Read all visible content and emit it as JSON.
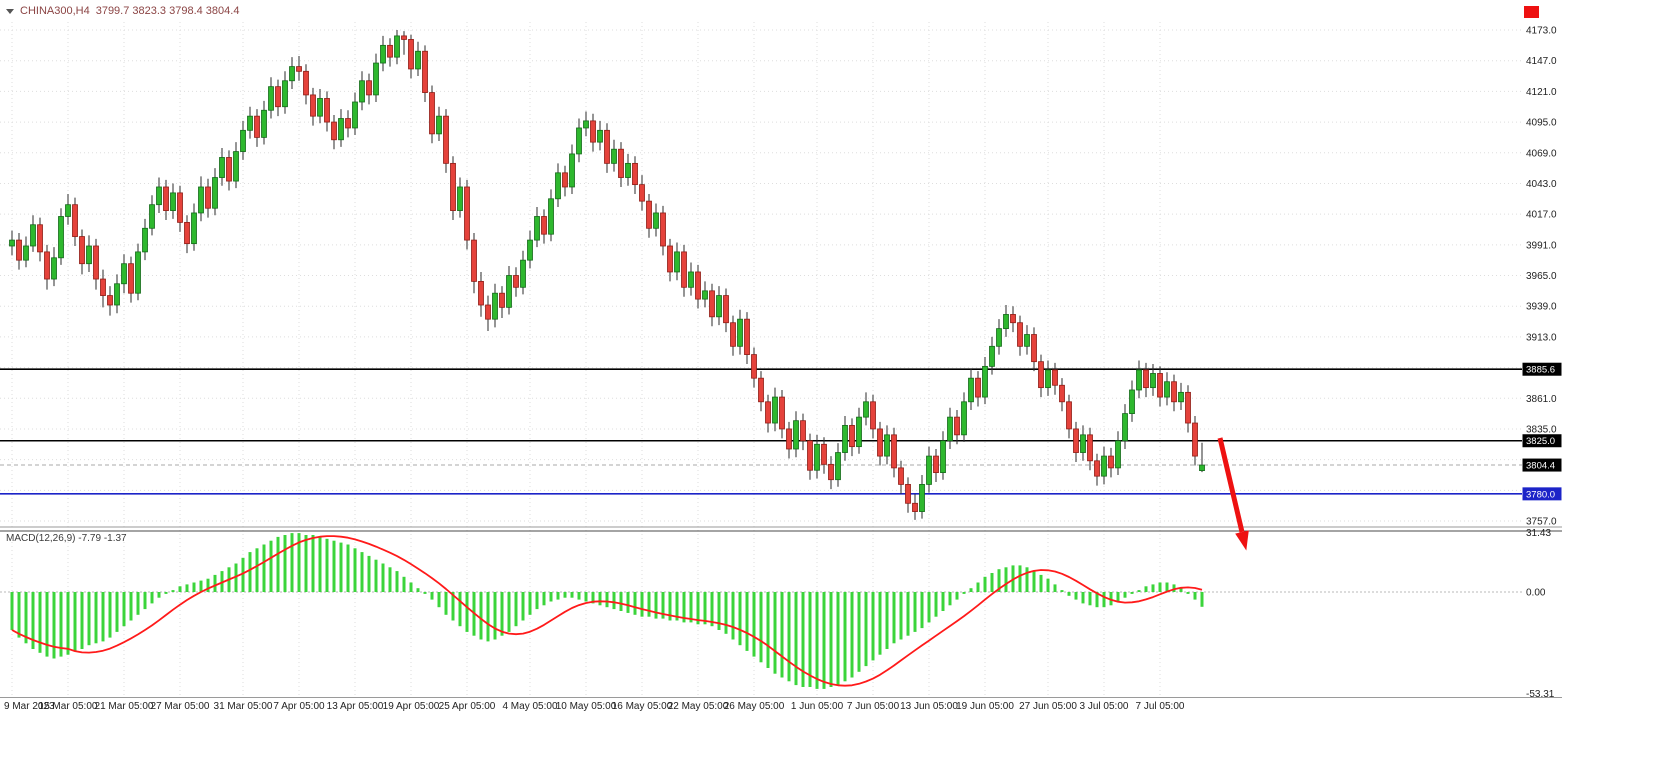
{
  "toolbar": {
    "symbol": "CHINA300,H4",
    "ohlc": "3799.7 3823.3 3798.4 3804.4"
  },
  "macd_label": "MACD(12,26,9) -7.79 -1.37",
  "colors": {
    "bull": "#2eb82e",
    "bear": "#e5423b",
    "wick": "#2b2b2b",
    "macd_bar": "#3bd43b",
    "macd_signal": "#ff1a1a",
    "level_black": "#000000",
    "level_blue": "#1c24c8",
    "grid": "#dedede",
    "axis_text": "#222222",
    "badge_text": "#ffffff",
    "arrow": "#ee1111"
  },
  "price_axis": {
    "visible_ticks": [
      4173,
      4147,
      4121,
      4095,
      4069,
      4043,
      4017,
      3991,
      3965,
      3939,
      3913,
      3861,
      3835,
      3757
    ]
  },
  "badges": [
    {
      "label": "3885.6",
      "price": 3885.6,
      "bg": "#000000"
    },
    {
      "label": "3825.0",
      "price": 3825.0,
      "bg": "#000000"
    },
    {
      "label": "3804.4",
      "price": 3804.4,
      "bg": "#000000"
    },
    {
      "label": "3780.0",
      "price": 3780.0,
      "bg": "#1c24c8"
    }
  ],
  "macd_axis": {
    "ticks": [
      {
        "label": "31.43",
        "value": 31.43
      },
      {
        "label": "0.00",
        "value": 0
      },
      {
        "label": "-53.31",
        "value": -53.31
      }
    ]
  },
  "time_axis": {
    "labels": [
      "9 Mar 2023",
      "15 Mar 05:00",
      "21 Mar 05:00",
      "27 Mar 05:00",
      "31 Mar 05:00",
      "7 Apr 05:00",
      "13 Apr 05:00",
      "19 Apr 05:00",
      "25 Apr 05:00",
      "4 May 05:00",
      "10 May 05:00",
      "16 May 05:00",
      "22 May 05:00",
      "26 May 05:00",
      "1 Jun 05:00",
      "7 Jun 05:00",
      "13 Jun 05:00",
      "19 Jun 05:00",
      "27 Jun 05:00",
      "3 Jul 05:00",
      "7 Jul 05:00"
    ],
    "indices": [
      0,
      8,
      16,
      24,
      33,
      41,
      49,
      57,
      65,
      74,
      82,
      90,
      98,
      106,
      115,
      123,
      131,
      139,
      148,
      156,
      164
    ]
  },
  "annotation": {
    "type": "arrow",
    "color": "#ee1111",
    "from": [
      1220,
      438
    ],
    "to": [
      1242,
      532
    ]
  },
  "chart_data": {
    "type": "candlestick",
    "symbol": "CHINA300",
    "timeframe": "H4",
    "title": "CHINA300,H4",
    "current_ohlc": {
      "open": 3799.7,
      "high": 3823.3,
      "low": 3798.4,
      "close": 3804.4
    },
    "price_range": [
      3757,
      4173
    ],
    "grid_step": 26,
    "levels": [
      {
        "price": 3885.6,
        "color": "#000000",
        "style": "solid"
      },
      {
        "price": 3825.0,
        "color": "#000000",
        "style": "solid"
      },
      {
        "price": 3804.4,
        "color": "#aaaaaa",
        "style": "dash"
      },
      {
        "price": 3780.0,
        "color": "#1c24c8",
        "style": "solid"
      }
    ],
    "candles": [
      [
        3990,
        4003,
        3982,
        3995
      ],
      [
        3995,
        4001,
        3970,
        3978
      ],
      [
        3978,
        3998,
        3972,
        3990
      ],
      [
        3990,
        4016,
        3985,
        4008
      ],
      [
        4008,
        4014,
        3977,
        3985
      ],
      [
        3985,
        3991,
        3953,
        3962
      ],
      [
        3962,
        3989,
        3956,
        3980
      ],
      [
        3980,
        4022,
        3974,
        4015
      ],
      [
        4015,
        4034,
        4008,
        4025
      ],
      [
        4025,
        4031,
        3990,
        3998
      ],
      [
        3998,
        4004,
        3966,
        3975
      ],
      [
        3975,
        3999,
        3968,
        3990
      ],
      [
        3990,
        3996,
        3953,
        3962
      ],
      [
        3962,
        3970,
        3938,
        3948
      ],
      [
        3948,
        3956,
        3931,
        3940
      ],
      [
        3940,
        3966,
        3933,
        3958
      ],
      [
        3958,
        3983,
        3950,
        3975
      ],
      [
        3975,
        3981,
        3942,
        3950
      ],
      [
        3950,
        3992,
        3944,
        3985
      ],
      [
        3985,
        4013,
        3978,
        4005
      ],
      [
        4005,
        4033,
        3999,
        4025
      ],
      [
        4025,
        4048,
        4018,
        4040
      ],
      [
        4040,
        4046,
        4012,
        4020
      ],
      [
        4020,
        4043,
        4013,
        4035
      ],
      [
        4035,
        4041,
        4002,
        4010
      ],
      [
        4010,
        4016,
        3984,
        3992
      ],
      [
        3992,
        4026,
        3986,
        4018
      ],
      [
        4018,
        4049,
        4011,
        4040
      ],
      [
        4040,
        4047,
        4014,
        4022
      ],
      [
        4022,
        4056,
        4016,
        4048
      ],
      [
        4048,
        4073,
        4041,
        4065
      ],
      [
        4065,
        4071,
        4037,
        4045
      ],
      [
        4045,
        4078,
        4039,
        4070
      ],
      [
        4070,
        4096,
        4063,
        4088
      ],
      [
        4088,
        4108,
        4081,
        4100
      ],
      [
        4100,
        4106,
        4074,
        4082
      ],
      [
        4082,
        4113,
        4076,
        4105
      ],
      [
        4105,
        4133,
        4098,
        4125
      ],
      [
        4125,
        4131,
        4100,
        4108
      ],
      [
        4108,
        4138,
        4102,
        4130
      ],
      [
        4130,
        4150,
        4123,
        4142
      ],
      [
        4142,
        4151,
        4130,
        4138
      ],
      [
        4138,
        4144,
        4110,
        4118
      ],
      [
        4118,
        4124,
        4092,
        4100
      ],
      [
        4100,
        4123,
        4094,
        4115
      ],
      [
        4115,
        4121,
        4087,
        4095
      ],
      [
        4095,
        4101,
        4072,
        4080
      ],
      [
        4080,
        4106,
        4074,
        4098
      ],
      [
        4098,
        4105,
        4082,
        4090
      ],
      [
        4090,
        4120,
        4084,
        4112
      ],
      [
        4112,
        4138,
        4105,
        4130
      ],
      [
        4130,
        4136,
        4110,
        4118
      ],
      [
        4118,
        4153,
        4112,
        4145
      ],
      [
        4145,
        4168,
        4138,
        4160
      ],
      [
        4160,
        4166,
        4142,
        4150
      ],
      [
        4150,
        4173,
        4144,
        4168
      ],
      [
        4168,
        4172,
        4152,
        4165
      ],
      [
        4165,
        4169,
        4132,
        4140
      ],
      [
        4140,
        4163,
        4134,
        4155
      ],
      [
        4155,
        4160,
        4112,
        4120
      ],
      [
        4120,
        4126,
        4077,
        4085
      ],
      [
        4085,
        4108,
        4079,
        4100
      ],
      [
        4100,
        4106,
        4052,
        4060
      ],
      [
        4060,
        4066,
        4012,
        4020
      ],
      [
        4020,
        4048,
        4014,
        4040
      ],
      [
        4040,
        4046,
        3987,
        3995
      ],
      [
        3995,
        4001,
        3950,
        3960
      ],
      [
        3960,
        3968,
        3930,
        3940
      ],
      [
        3940,
        3948,
        3918,
        3928
      ],
      [
        3928,
        3958,
        3921,
        3950
      ],
      [
        3950,
        3956,
        3929,
        3938
      ],
      [
        3938,
        3973,
        3932,
        3965
      ],
      [
        3965,
        3972,
        3947,
        3955
      ],
      [
        3955,
        3986,
        3949,
        3978
      ],
      [
        3978,
        4003,
        3971,
        3995
      ],
      [
        3995,
        4023,
        3989,
        4015
      ],
      [
        4015,
        4021,
        3992,
        4000
      ],
      [
        4000,
        4038,
        3994,
        4030
      ],
      [
        4030,
        4060,
        4023,
        4052
      ],
      [
        4052,
        4058,
        4032,
        4040
      ],
      [
        4040,
        4076,
        4034,
        4068
      ],
      [
        4068,
        4098,
        4061,
        4090
      ],
      [
        4090,
        4104,
        4083,
        4096
      ],
      [
        4096,
        4102,
        4070,
        4078
      ],
      [
        4078,
        4096,
        4071,
        4088
      ],
      [
        4088,
        4094,
        4052,
        4060
      ],
      [
        4060,
        4080,
        4053,
        4072
      ],
      [
        4072,
        4078,
        4040,
        4048
      ],
      [
        4048,
        4068,
        4041,
        4060
      ],
      [
        4060,
        4066,
        4034,
        4042
      ],
      [
        4042,
        4050,
        4020,
        4028
      ],
      [
        4028,
        4034,
        3997,
        4005
      ],
      [
        4005,
        4026,
        3998,
        4018
      ],
      [
        4018,
        4024,
        3982,
        3990
      ],
      [
        3990,
        3996,
        3960,
        3968
      ],
      [
        3968,
        3993,
        3961,
        3985
      ],
      [
        3985,
        3991,
        3947,
        3955
      ],
      [
        3955,
        3976,
        3948,
        3968
      ],
      [
        3968,
        3974,
        3937,
        3945
      ],
      [
        3945,
        3960,
        3938,
        3952
      ],
      [
        3952,
        3958,
        3922,
        3930
      ],
      [
        3930,
        3956,
        3923,
        3948
      ],
      [
        3948,
        3954,
        3917,
        3925
      ],
      [
        3925,
        3931,
        3897,
        3905
      ],
      [
        3905,
        3936,
        3898,
        3928
      ],
      [
        3928,
        3934,
        3890,
        3898
      ],
      [
        3898,
        3904,
        3870,
        3878
      ],
      [
        3878,
        3884,
        3850,
        3858
      ],
      [
        3858,
        3864,
        3832,
        3840
      ],
      [
        3840,
        3870,
        3833,
        3862
      ],
      [
        3862,
        3868,
        3827,
        3835
      ],
      [
        3835,
        3841,
        3810,
        3818
      ],
      [
        3818,
        3850,
        3811,
        3842
      ],
      [
        3842,
        3848,
        3817,
        3825
      ],
      [
        3825,
        3831,
        3792,
        3800
      ],
      [
        3800,
        3830,
        3793,
        3822
      ],
      [
        3822,
        3828,
        3797,
        3805
      ],
      [
        3805,
        3812,
        3784,
        3792
      ],
      [
        3792,
        3823,
        3786,
        3815
      ],
      [
        3815,
        3846,
        3808,
        3838
      ],
      [
        3838,
        3844,
        3812,
        3820
      ],
      [
        3820,
        3853,
        3814,
        3845
      ],
      [
        3845,
        3866,
        3838,
        3858
      ],
      [
        3858,
        3864,
        3827,
        3835
      ],
      [
        3835,
        3841,
        3804,
        3812
      ],
      [
        3812,
        3838,
        3805,
        3830
      ],
      [
        3830,
        3836,
        3794,
        3802
      ],
      [
        3802,
        3808,
        3780,
        3788
      ],
      [
        3788,
        3794,
        3764,
        3772
      ],
      [
        3772,
        3780,
        3758,
        3765
      ],
      [
        3765,
        3796,
        3759,
        3788
      ],
      [
        3788,
        3820,
        3781,
        3812
      ],
      [
        3812,
        3818,
        3790,
        3798
      ],
      [
        3798,
        3833,
        3792,
        3825
      ],
      [
        3825,
        3853,
        3818,
        3845
      ],
      [
        3845,
        3851,
        3822,
        3830
      ],
      [
        3830,
        3866,
        3824,
        3858
      ],
      [
        3858,
        3886,
        3851,
        3878
      ],
      [
        3878,
        3884,
        3854,
        3862
      ],
      [
        3862,
        3896,
        3856,
        3888
      ],
      [
        3888,
        3913,
        3881,
        3905
      ],
      [
        3905,
        3928,
        3898,
        3920
      ],
      [
        3920,
        3940,
        3913,
        3932
      ],
      [
        3932,
        3939,
        3917,
        3925
      ],
      [
        3925,
        3931,
        3897,
        3905
      ],
      [
        3905,
        3923,
        3898,
        3915
      ],
      [
        3915,
        3921,
        3884,
        3892
      ],
      [
        3892,
        3898,
        3862,
        3870
      ],
      [
        3870,
        3893,
        3863,
        3885
      ],
      [
        3885,
        3891,
        3864,
        3872
      ],
      [
        3872,
        3878,
        3850,
        3858
      ],
      [
        3858,
        3864,
        3827,
        3835
      ],
      [
        3835,
        3841,
        3807,
        3815
      ],
      [
        3815,
        3838,
        3808,
        3830
      ],
      [
        3830,
        3836,
        3800,
        3808
      ],
      [
        3808,
        3814,
        3787,
        3795
      ],
      [
        3795,
        3820,
        3788,
        3812
      ],
      [
        3812,
        3819,
        3794,
        3802
      ],
      [
        3802,
        3833,
        3796,
        3825
      ],
      [
        3825,
        3856,
        3818,
        3848
      ],
      [
        3848,
        3876,
        3841,
        3868
      ],
      [
        3868,
        3893,
        3861,
        3885
      ],
      [
        3885,
        3891,
        3862,
        3870
      ],
      [
        3870,
        3890,
        3863,
        3882
      ],
      [
        3882,
        3888,
        3854,
        3862
      ],
      [
        3862,
        3883,
        3855,
        3875
      ],
      [
        3875,
        3881,
        3850,
        3858
      ],
      [
        3858,
        3874,
        3851,
        3866
      ],
      [
        3866,
        3872,
        3832,
        3840
      ],
      [
        3840,
        3846,
        3804,
        3812
      ],
      [
        3799.7,
        3823.3,
        3798.4,
        3804.4
      ]
    ],
    "macd": {
      "params": "12,26,9",
      "main": -7.79,
      "signal": -1.37,
      "range": [
        -53.31,
        31.43
      ],
      "signal_method": "sma9",
      "histogram": [
        -20,
        -24,
        -27,
        -30,
        -32,
        -34,
        -35,
        -34,
        -33,
        -31,
        -30,
        -28,
        -27,
        -26,
        -24,
        -21,
        -18,
        -15,
        -12,
        -9,
        -6,
        -3,
        -1,
        1,
        3,
        4,
        5,
        6,
        7,
        9,
        11,
        13,
        15,
        18,
        21,
        23,
        25,
        27,
        29,
        30,
        31,
        31,
        30,
        30,
        29,
        28,
        27,
        26,
        25,
        23,
        21,
        19,
        17,
        15,
        13,
        11,
        8,
        5,
        2,
        -1,
        -4,
        -8,
        -12,
        -15,
        -18,
        -21,
        -23,
        -25,
        -26,
        -25,
        -23,
        -21,
        -18,
        -15,
        -12,
        -9,
        -7,
        -5,
        -4,
        -3,
        -3,
        -4,
        -5,
        -6,
        -7,
        -8,
        -9,
        -10,
        -11,
        -12,
        -13,
        -13,
        -14,
        -14,
        -15,
        -15,
        -16,
        -16,
        -17,
        -17,
        -18,
        -20,
        -22,
        -25,
        -28,
        -31,
        -34,
        -37,
        -40,
        -43,
        -45,
        -47,
        -49,
        -50,
        -50,
        -51,
        -51,
        -50,
        -49,
        -47,
        -45,
        -42,
        -39,
        -36,
        -33,
        -30,
        -27,
        -25,
        -23,
        -21,
        -19,
        -16,
        -13,
        -10,
        -7,
        -4,
        -1,
        2,
        5,
        8,
        10,
        12,
        13,
        14,
        14,
        13,
        11,
        9,
        7,
        4,
        1,
        -2,
        -4,
        -6,
        -7,
        -8,
        -8,
        -7,
        -5,
        -3,
        -1,
        1,
        3,
        4,
        5,
        5,
        4,
        2,
        -1,
        -4,
        -7.79
      ]
    }
  }
}
